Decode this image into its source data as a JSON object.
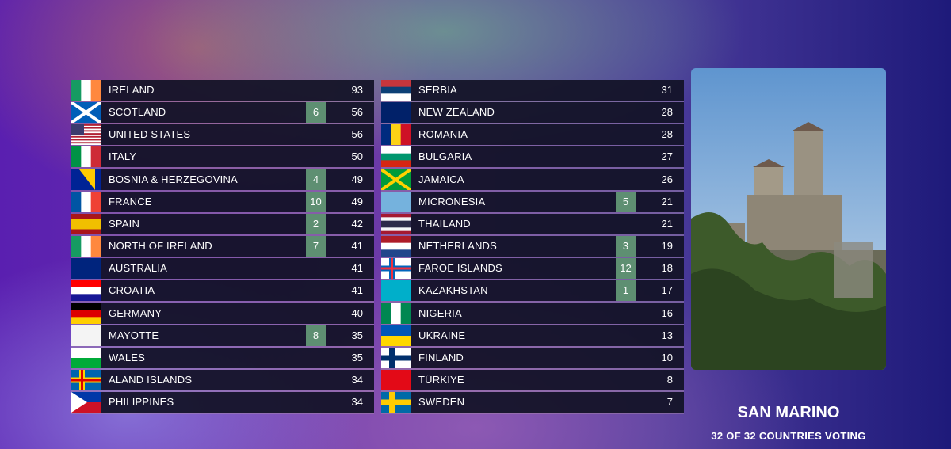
{
  "scoreboard": {
    "rows": [
      {
        "country": "IRELAND",
        "total": 93
      },
      {
        "country": "SCOTLAND",
        "points": 6,
        "total": 56
      },
      {
        "country": "UNITED STATES",
        "total": 56
      },
      {
        "country": "ITALY",
        "total": 50
      },
      {
        "country": "BOSNIA & HERZEGOVINA",
        "points": 4,
        "total": 49
      },
      {
        "country": "FRANCE",
        "points": 10,
        "total": 49
      },
      {
        "country": "SPAIN",
        "points": 2,
        "total": 42
      },
      {
        "country": "NORTH OF IRELAND",
        "points": 7,
        "total": 41
      },
      {
        "country": "AUSTRALIA",
        "total": 41
      },
      {
        "country": "CROATIA",
        "total": 41
      },
      {
        "country": "GERMANY",
        "total": 40
      },
      {
        "country": "MAYOTTE",
        "points": 8,
        "total": 35
      },
      {
        "country": "WALES",
        "total": 35
      },
      {
        "country": "ALAND ISLANDS",
        "total": 34
      },
      {
        "country": "PHILIPPINES",
        "total": 34
      },
      {
        "country": "SERBIA",
        "total": 31
      },
      {
        "country": "NEW ZEALAND",
        "total": 28
      },
      {
        "country": "ROMANIA",
        "total": 28
      },
      {
        "country": "BULGARIA",
        "total": 27
      },
      {
        "country": "JAMAICA",
        "total": 26
      },
      {
        "country": "MICRONESIA",
        "points": 5,
        "total": 21
      },
      {
        "country": "THAILAND",
        "total": 21
      },
      {
        "country": "NETHERLANDS",
        "points": 3,
        "total": 19
      },
      {
        "country": "FAROE ISLANDS",
        "points": 12,
        "total": 18
      },
      {
        "country": "KAZAKHSTAN",
        "points": 1,
        "total": 17
      },
      {
        "country": "NIGERIA",
        "total": 16
      },
      {
        "country": "UKRAINE",
        "total": 13
      },
      {
        "country": "FINLAND",
        "total": 10
      },
      {
        "country": "TÜRKIYE",
        "total": 8
      },
      {
        "country": "SWEDEN",
        "total": 7
      }
    ]
  },
  "jury": {
    "name": "SAN MARINO",
    "status": "32 OF 32 COUNTRIES VOTING"
  }
}
